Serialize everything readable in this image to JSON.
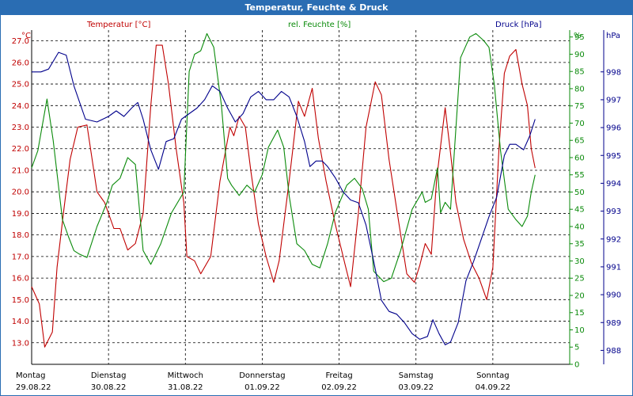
{
  "window": {
    "title": "Temperatur, Feuchte & Druck"
  },
  "colors": {
    "temperature": "#c00000",
    "humidity": "#0a8a0a",
    "pressure": "#00008b",
    "grid": "#000000",
    "title_bg": "#2a6db3"
  },
  "chart_data": {
    "type": "line",
    "title": "Temperatur, Feuchte & Druck",
    "x_range": [
      0,
      7
    ],
    "x_ticks": [
      {
        "day": "Montag",
        "date": "29.08.22"
      },
      {
        "day": "Dienstag",
        "date": "30.08.22"
      },
      {
        "day": "Mittwoch",
        "date": "31.08.22"
      },
      {
        "day": "Donnerstag",
        "date": "01.09.22"
      },
      {
        "day": "Freitag",
        "date": "02.09.22"
      },
      {
        "day": "Samstag",
        "date": "03.09.22"
      },
      {
        "day": "Sonntag",
        "date": "04.09.22"
      }
    ],
    "axes": {
      "left": {
        "unit": "°C",
        "label": "Temperatur [°C]",
        "range": [
          12.0,
          27.5
        ],
        "ticks": [
          "13.0",
          "14.0",
          "15.0",
          "16.0",
          "17.0",
          "18.0",
          "19.0",
          "20.0",
          "21.0",
          "22.0",
          "23.0",
          "24.0",
          "25.0",
          "26.0",
          "27.0"
        ]
      },
      "middle": {
        "unit": "%",
        "label": "rel. Feuchte [%]",
        "range": [
          0,
          97
        ],
        "ticks": [
          "0",
          "5",
          "10",
          "15",
          "20",
          "25",
          "30",
          "35",
          "40",
          "45",
          "50",
          "55",
          "60",
          "65",
          "70",
          "75",
          "80",
          "85",
          "90",
          "95"
        ]
      },
      "right": {
        "unit": "hPa",
        "label": "Druck [hPa]",
        "range": [
          987.5,
          999.5
        ],
        "ticks": [
          "988",
          "989",
          "990",
          "991",
          "992",
          "993",
          "994",
          "995",
          "996",
          "997",
          "998"
        ]
      }
    },
    "series": [
      {
        "name": "Temperatur [°C]",
        "axis": "left",
        "color": "#c00000",
        "points": [
          [
            0,
            15.6
          ],
          [
            0.1,
            14.8
          ],
          [
            0.17,
            12.8
          ],
          [
            0.27,
            13.5
          ],
          [
            0.33,
            16.5
          ],
          [
            0.42,
            19.2
          ],
          [
            0.5,
            21.5
          ],
          [
            0.6,
            23.0
          ],
          [
            0.72,
            23.1
          ],
          [
            0.85,
            20.0
          ],
          [
            0.95,
            19.5
          ],
          [
            1.07,
            18.3
          ],
          [
            1.15,
            18.3
          ],
          [
            1.25,
            17.3
          ],
          [
            1.35,
            17.6
          ],
          [
            1.45,
            19.0
          ],
          [
            1.55,
            24.0
          ],
          [
            1.62,
            26.8
          ],
          [
            1.7,
            26.8
          ],
          [
            1.78,
            25.0
          ],
          [
            1.88,
            22.0
          ],
          [
            1.98,
            19.5
          ],
          [
            2.02,
            17.0
          ],
          [
            2.12,
            16.8
          ],
          [
            2.2,
            16.2
          ],
          [
            2.33,
            17.0
          ],
          [
            2.45,
            20.5
          ],
          [
            2.58,
            23.0
          ],
          [
            2.63,
            22.6
          ],
          [
            2.7,
            23.5
          ],
          [
            2.78,
            23.0
          ],
          [
            2.85,
            21.0
          ],
          [
            2.95,
            18.5
          ],
          [
            3.05,
            17.0
          ],
          [
            3.15,
            15.8
          ],
          [
            3.22,
            16.8
          ],
          [
            3.35,
            20.5
          ],
          [
            3.47,
            24.2
          ],
          [
            3.55,
            23.5
          ],
          [
            3.65,
            24.8
          ],
          [
            3.73,
            22.5
          ],
          [
            3.83,
            20.5
          ],
          [
            3.95,
            18.5
          ],
          [
            4.08,
            16.6
          ],
          [
            4.15,
            15.6
          ],
          [
            4.25,
            19.0
          ],
          [
            4.35,
            23.0
          ],
          [
            4.47,
            25.1
          ],
          [
            4.55,
            24.5
          ],
          [
            4.65,
            21.5
          ],
          [
            4.78,
            18.5
          ],
          [
            4.88,
            16.2
          ],
          [
            4.98,
            15.8
          ],
          [
            5.05,
            16.6
          ],
          [
            5.12,
            17.6
          ],
          [
            5.2,
            17.1
          ],
          [
            5.27,
            20.6
          ],
          [
            5.38,
            23.9
          ],
          [
            5.45,
            21.8
          ],
          [
            5.52,
            19.5
          ],
          [
            5.62,
            17.8
          ],
          [
            5.72,
            16.7
          ],
          [
            5.82,
            16.0
          ],
          [
            5.92,
            15.0
          ],
          [
            6.0,
            16.5
          ],
          [
            6.08,
            22.0
          ],
          [
            6.15,
            25.5
          ],
          [
            6.22,
            26.3
          ],
          [
            6.3,
            26.6
          ],
          [
            6.38,
            25.0
          ],
          [
            6.45,
            24.0
          ],
          [
            6.5,
            22.0
          ],
          [
            6.55,
            21.1
          ]
        ]
      },
      {
        "name": "rel. Feuchte [%]",
        "axis": "middle",
        "color": "#0a8a0a",
        "points": [
          [
            0,
            57
          ],
          [
            0.08,
            62
          ],
          [
            0.2,
            77
          ],
          [
            0.28,
            65
          ],
          [
            0.4,
            42
          ],
          [
            0.48,
            37
          ],
          [
            0.55,
            33
          ],
          [
            0.62,
            32
          ],
          [
            0.72,
            31
          ],
          [
            0.85,
            40
          ],
          [
            0.98,
            47
          ],
          [
            1.05,
            52
          ],
          [
            1.15,
            54
          ],
          [
            1.25,
            60
          ],
          [
            1.35,
            58
          ],
          [
            1.45,
            33
          ],
          [
            1.55,
            29
          ],
          [
            1.68,
            35
          ],
          [
            1.82,
            44
          ],
          [
            1.98,
            50
          ],
          [
            2.05,
            85
          ],
          [
            2.12,
            90
          ],
          [
            2.2,
            91
          ],
          [
            2.28,
            96
          ],
          [
            2.37,
            92
          ],
          [
            2.47,
            75
          ],
          [
            2.55,
            54
          ],
          [
            2.6,
            52
          ],
          [
            2.7,
            49
          ],
          [
            2.8,
            52
          ],
          [
            2.9,
            50
          ],
          [
            3.0,
            55
          ],
          [
            3.08,
            63
          ],
          [
            3.2,
            68
          ],
          [
            3.28,
            63
          ],
          [
            3.35,
            49
          ],
          [
            3.45,
            35
          ],
          [
            3.55,
            33
          ],
          [
            3.65,
            29
          ],
          [
            3.75,
            28
          ],
          [
            3.85,
            35
          ],
          [
            3.95,
            44
          ],
          [
            4.1,
            52
          ],
          [
            4.2,
            54
          ],
          [
            4.3,
            51
          ],
          [
            4.38,
            45
          ],
          [
            4.45,
            27
          ],
          [
            4.58,
            24
          ],
          [
            4.68,
            25
          ],
          [
            4.8,
            33
          ],
          [
            4.95,
            45
          ],
          [
            5.08,
            50
          ],
          [
            5.12,
            47
          ],
          [
            5.2,
            48
          ],
          [
            5.28,
            57
          ],
          [
            5.32,
            44
          ],
          [
            5.38,
            47
          ],
          [
            5.45,
            45
          ],
          [
            5.5,
            62
          ],
          [
            5.58,
            89
          ],
          [
            5.7,
            95
          ],
          [
            5.78,
            96
          ],
          [
            5.88,
            94
          ],
          [
            5.95,
            92
          ],
          [
            6.02,
            81
          ],
          [
            6.1,
            62
          ],
          [
            6.2,
            45
          ],
          [
            6.3,
            42
          ],
          [
            6.38,
            40
          ],
          [
            6.45,
            43
          ],
          [
            6.5,
            50
          ],
          [
            6.55,
            55
          ]
        ]
      },
      {
        "name": "Druck [hPa]",
        "axis": "right",
        "color": "#00008b",
        "points": [
          [
            0,
            998.0
          ],
          [
            0.12,
            998.0
          ],
          [
            0.22,
            998.1
          ],
          [
            0.35,
            998.7
          ],
          [
            0.45,
            998.6
          ],
          [
            0.55,
            997.5
          ],
          [
            0.7,
            996.3
          ],
          [
            0.85,
            996.2
          ],
          [
            1.0,
            996.4
          ],
          [
            1.1,
            996.6
          ],
          [
            1.2,
            996.4
          ],
          [
            1.3,
            996.7
          ],
          [
            1.38,
            996.9
          ],
          [
            1.45,
            996.3
          ],
          [
            1.55,
            995.2
          ],
          [
            1.65,
            994.5
          ],
          [
            1.75,
            995.5
          ],
          [
            1.85,
            995.6
          ],
          [
            1.95,
            996.3
          ],
          [
            2.05,
            996.5
          ],
          [
            2.15,
            996.7
          ],
          [
            2.25,
            997.0
          ],
          [
            2.35,
            997.5
          ],
          [
            2.45,
            997.3
          ],
          [
            2.55,
            996.7
          ],
          [
            2.65,
            996.2
          ],
          [
            2.75,
            996.5
          ],
          [
            2.85,
            997.1
          ],
          [
            2.95,
            997.3
          ],
          [
            3.05,
            997.0
          ],
          [
            3.15,
            997.0
          ],
          [
            3.25,
            997.3
          ],
          [
            3.35,
            997.1
          ],
          [
            3.45,
            996.4
          ],
          [
            3.55,
            995.5
          ],
          [
            3.62,
            994.6
          ],
          [
            3.7,
            994.8
          ],
          [
            3.78,
            994.8
          ],
          [
            3.85,
            994.6
          ],
          [
            3.95,
            994.2
          ],
          [
            4.05,
            993.7
          ],
          [
            4.15,
            993.4
          ],
          [
            4.25,
            993.3
          ],
          [
            4.35,
            992.5
          ],
          [
            4.45,
            991.2
          ],
          [
            4.55,
            989.8
          ],
          [
            4.65,
            989.4
          ],
          [
            4.75,
            989.3
          ],
          [
            4.85,
            989.0
          ],
          [
            4.95,
            988.6
          ],
          [
            5.05,
            988.4
          ],
          [
            5.15,
            988.5
          ],
          [
            5.22,
            989.1
          ],
          [
            5.3,
            988.6
          ],
          [
            5.38,
            988.2
          ],
          [
            5.45,
            988.3
          ],
          [
            5.55,
            989.0
          ],
          [
            5.65,
            990.5
          ],
          [
            5.75,
            991.2
          ],
          [
            5.85,
            992.0
          ],
          [
            5.95,
            992.8
          ],
          [
            6.05,
            993.5
          ],
          [
            6.15,
            995.0
          ],
          [
            6.22,
            995.4
          ],
          [
            6.3,
            995.4
          ],
          [
            6.4,
            995.2
          ],
          [
            6.48,
            995.7
          ],
          [
            6.55,
            996.3
          ]
        ]
      }
    ]
  }
}
